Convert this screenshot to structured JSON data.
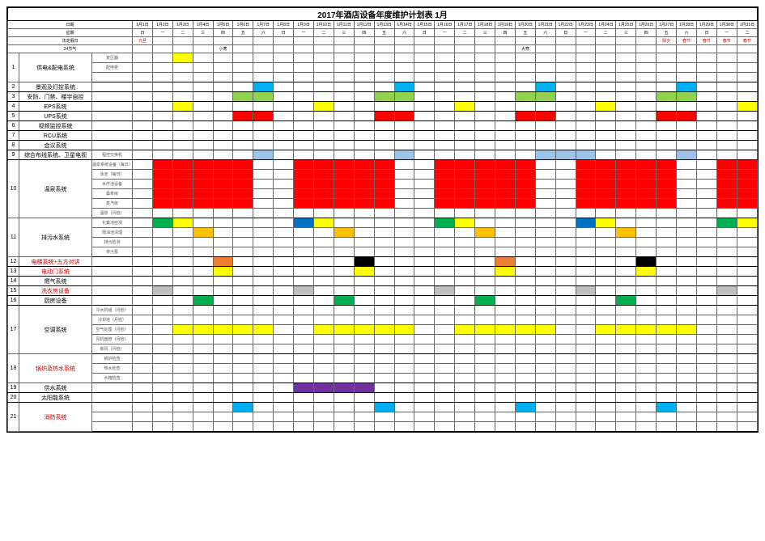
{
  "title": "2017年酒店设备年度维护计划表  1月",
  "header_labels": {
    "date": "日期",
    "weekday": "星期",
    "holiday": "法定假日",
    "solar_term": "24节气"
  },
  "days": [
    "1月1日",
    "1月2日",
    "1月3日",
    "1月4日",
    "1月5日",
    "1月6日",
    "1月7日",
    "1月8日",
    "1月9日",
    "1月10日",
    "1月11日",
    "1月12日",
    "1月13日",
    "1月14日",
    "1月15日",
    "1月16日",
    "1月17日",
    "1月18日",
    "1月19日",
    "1月20日",
    "1月21日",
    "1月22日",
    "1月23日",
    "1月24日",
    "1月25日",
    "1月26日",
    "1月27日",
    "1月28日",
    "1月29日",
    "1月30日",
    "1月31日"
  ],
  "weekdays": [
    "日",
    "一",
    "二",
    "三",
    "四",
    "五",
    "六",
    "日",
    "一",
    "二",
    "三",
    "四",
    "五",
    "六",
    "日",
    "一",
    "二",
    "三",
    "四",
    "五",
    "六",
    "日",
    "一",
    "二",
    "三",
    "四",
    "五",
    "六",
    "日",
    "一",
    "二"
  ],
  "holidays": {
    "0": {
      "text": "元旦",
      "color": "#cc0000"
    },
    "26": {
      "text": "除夕",
      "color": "#cc0000"
    },
    "27": {
      "text": "春节",
      "color": "#cc0000"
    },
    "28": {
      "text": "春节",
      "color": "#cc0000"
    },
    "29": {
      "text": "春节",
      "color": "#cc0000"
    },
    "30": {
      "text": "春节",
      "color": "#cc0000"
    }
  },
  "solar_terms": {
    "4": "小寒",
    "19": "大寒"
  },
  "solar_span1": {
    "start": 0,
    "end": 4,
    "text": "冬   至"
  },
  "solar_span2": {
    "start": 5,
    "end": 19,
    "text": "小        寒"
  },
  "colors": {
    "red": "#ff0000",
    "yellow": "#ffff00",
    "green": "#00b050",
    "lime": "#92d050",
    "blue": "#00b0f0",
    "darkblue": "#0070c0",
    "lightblue": "#9dc3e6",
    "orange": "#ffc000",
    "darkorange": "#ed7d31",
    "purple": "#7030a0",
    "black": "#000000",
    "gray": "#bfbfbf"
  },
  "row_groups": [
    {
      "idx": "1",
      "name": "供电&配电系统",
      "red": false,
      "subs": [
        {
          "label": "变压器",
          "cells": {
            "2": "yellow"
          }
        },
        {
          "label": "配电柜",
          "cells": {}
        },
        {
          "label": "",
          "cells": {}
        }
      ]
    },
    {
      "idx": "2",
      "name": "景观及灯控系统",
      "red": false,
      "subs": [
        {
          "label": "",
          "cells": {
            "6": "blue",
            "13": "blue",
            "20": "blue",
            "27": "blue"
          }
        }
      ]
    },
    {
      "idx": "3",
      "name": "安防、门禁、楼宇自控",
      "red": false,
      "subs": [
        {
          "label": "",
          "cells": {
            "5": "lime",
            "6": "lime",
            "12": "lime",
            "13": "lime",
            "19": "lime",
            "20": "lime",
            "26": "lime",
            "27": "lime"
          }
        }
      ]
    },
    {
      "idx": "4",
      "name": "EPS系统",
      "red": false,
      "subs": [
        {
          "label": "",
          "cells": {
            "2": "yellow",
            "9": "yellow",
            "16": "yellow",
            "23": "yellow",
            "30": "yellow"
          }
        }
      ]
    },
    {
      "idx": "5",
      "name": "UPS系统",
      "red": false,
      "subs": [
        {
          "label": "",
          "cells": {
            "5": "red",
            "6": "red",
            "12": "red",
            "13": "red",
            "19": "red",
            "20": "red",
            "26": "red",
            "27": "red"
          }
        }
      ]
    },
    {
      "idx": "6",
      "name": "视频监控系统",
      "red": false,
      "subs": [
        {
          "label": "",
          "cells": {}
        }
      ]
    },
    {
      "idx": "7",
      "name": "RCU系统",
      "red": false,
      "subs": [
        {
          "label": "",
          "cells": {}
        }
      ]
    },
    {
      "idx": "8",
      "name": "会议系统",
      "red": false,
      "subs": [
        {
          "label": "",
          "cells": {}
        }
      ]
    },
    {
      "idx": "9",
      "name": "综合布线系统、卫星电视",
      "red": false,
      "subs": [
        {
          "label": "程控交换机",
          "cells": {
            "6": "lightblue",
            "13": "lightblue",
            "20": "lightblue",
            "21": "lightblue",
            "22": "lightblue",
            "27": "lightblue"
          }
        }
      ]
    },
    {
      "idx": "10",
      "name": "温泉系统",
      "red": false,
      "subs": [
        {
          "label": "温泉系统设备（每日）",
          "cells": {
            "1": "red",
            "2": "red",
            "3": "red",
            "4": "red",
            "5": "red",
            "8": "red",
            "9": "red",
            "10": "red",
            "11": "red",
            "12": "red",
            "15": "red",
            "16": "red",
            "17": "red",
            "18": "red",
            "19": "red",
            "22": "red",
            "23": "red",
            "24": "red",
            "25": "red",
            "26": "red",
            "29": "red",
            "30": "red"
          }
        },
        {
          "label": "泳池（每日）",
          "cells": {
            "1": "red",
            "2": "red",
            "3": "red",
            "4": "red",
            "5": "red",
            "8": "red",
            "9": "red",
            "10": "red",
            "11": "red",
            "12": "red",
            "15": "red",
            "16": "red",
            "17": "red",
            "18": "red",
            "19": "red",
            "22": "red",
            "23": "red",
            "24": "red",
            "25": "red",
            "26": "red",
            "29": "red",
            "30": "red"
          }
        },
        {
          "label": "水疗池设备",
          "cells": {
            "1": "red",
            "2": "red",
            "3": "red",
            "4": "red",
            "5": "red",
            "8": "red",
            "9": "red",
            "10": "red",
            "11": "red",
            "12": "red",
            "15": "red",
            "16": "red",
            "17": "red",
            "18": "red",
            "19": "red",
            "22": "red",
            "23": "red",
            "24": "red",
            "25": "red",
            "26": "red",
            "29": "red",
            "30": "red"
          }
        },
        {
          "label": "桑拿房",
          "cells": {
            "1": "red",
            "2": "red",
            "3": "red",
            "4": "red",
            "5": "red",
            "8": "red",
            "9": "red",
            "10": "red",
            "11": "red",
            "12": "red",
            "15": "red",
            "16": "red",
            "17": "red",
            "18": "red",
            "19": "red",
            "22": "red",
            "23": "red",
            "24": "red",
            "25": "red",
            "26": "red",
            "29": "red",
            "30": "red"
          }
        },
        {
          "label": "蒸汽房",
          "cells": {
            "1": "red",
            "2": "red",
            "3": "red",
            "4": "red",
            "5": "red",
            "8": "red",
            "9": "red",
            "10": "red",
            "11": "red",
            "12": "red",
            "15": "red",
            "16": "red",
            "17": "red",
            "18": "red",
            "19": "red",
            "22": "red",
            "23": "red",
            "24": "red",
            "25": "red",
            "26": "red",
            "29": "red",
            "30": "red"
          }
        },
        {
          "label": "温泉（月检）",
          "cells": {}
        }
      ]
    },
    {
      "idx": "11",
      "name": "排污水系统",
      "red": false,
      "subs": [
        {
          "label": "化粪池检测",
          "cells": {
            "1": "green",
            "2": "yellow",
            "8": "darkblue",
            "9": "yellow",
            "15": "green",
            "16": "yellow",
            "22": "darkblue",
            "23": "yellow",
            "29": "green",
            "30": "yellow"
          }
        },
        {
          "label": "隔油池清理",
          "cells": {
            "3": "orange",
            "10": "orange",
            "17": "orange",
            "24": "orange"
          }
        },
        {
          "label": "排污检测",
          "cells": {}
        },
        {
          "label": "排污泵",
          "cells": {}
        }
      ]
    },
    {
      "idx": "12",
      "name": "电梯系统+五方对讲",
      "red": true,
      "subs": [
        {
          "label": "",
          "cells": {
            "4": "darkorange",
            "11": "black",
            "18": "darkorange",
            "25": "black"
          }
        }
      ]
    },
    {
      "idx": "13",
      "name": "电动门系统",
      "red": true,
      "subs": [
        {
          "label": "",
          "cells": {
            "4": "yellow",
            "11": "yellow",
            "18": "yellow",
            "25": "yellow"
          }
        }
      ]
    },
    {
      "idx": "14",
      "name": "燃气系统",
      "red": false,
      "subs": [
        {
          "label": "",
          "cells": {}
        }
      ]
    },
    {
      "idx": "15",
      "name": "洗衣房设备",
      "red": true,
      "subs": [
        {
          "label": "",
          "cells": {
            "1": "gray",
            "8": "gray",
            "15": "gray",
            "22": "gray",
            "29": "gray"
          }
        }
      ]
    },
    {
      "idx": "16",
      "name": "厨房设备",
      "red": false,
      "subs": [
        {
          "label": "",
          "cells": {
            "3": "green",
            "10": "green",
            "17": "green",
            "24": "green"
          }
        }
      ]
    },
    {
      "idx": "17",
      "name": "空调系统",
      "red": false,
      "subs": [
        {
          "label": "冷水机组（月检）",
          "cells": {}
        },
        {
          "label": "冷却塔（月检）",
          "cells": {}
        },
        {
          "label": "空气处理（月检）",
          "cells": {
            "2": "yellow",
            "3": "yellow",
            "4": "yellow",
            "5": "yellow",
            "6": "yellow",
            "9": "yellow",
            "10": "yellow",
            "11": "yellow",
            "12": "yellow",
            "13": "yellow",
            "16": "yellow",
            "17": "yellow",
            "18": "yellow",
            "19": "yellow",
            "20": "yellow",
            "23": "yellow",
            "24": "yellow",
            "25": "yellow",
            "26": "yellow",
            "27": "yellow"
          }
        },
        {
          "label": "风机盘管（月检）",
          "cells": {}
        },
        {
          "label": "新风（月检）",
          "cells": {}
        }
      ]
    },
    {
      "idx": "18",
      "name": "锅炉及热水系统",
      "red": true,
      "subs": [
        {
          "label": "锅炉检查",
          "cells": {}
        },
        {
          "label": "热水检查",
          "cells": {}
        },
        {
          "label": "水箱检查",
          "cells": {}
        }
      ]
    },
    {
      "idx": "19",
      "name": "供水系统",
      "red": false,
      "subs": [
        {
          "label": "",
          "cells": {
            "8": "purple",
            "9": "purple",
            "10": "purple",
            "11": "purple"
          }
        }
      ]
    },
    {
      "idx": "20",
      "name": "太阳能系统",
      "red": false,
      "subs": [
        {
          "label": "",
          "cells": {}
        }
      ]
    },
    {
      "idx": "21",
      "name": "消防系统",
      "red": true,
      "subs": [
        {
          "label": "",
          "cells": {
            "5": "blue",
            "12": "blue",
            "19": "blue",
            "26": "blue"
          }
        },
        {
          "label": "",
          "cells": {}
        },
        {
          "label": "",
          "cells": {}
        }
      ]
    }
  ]
}
